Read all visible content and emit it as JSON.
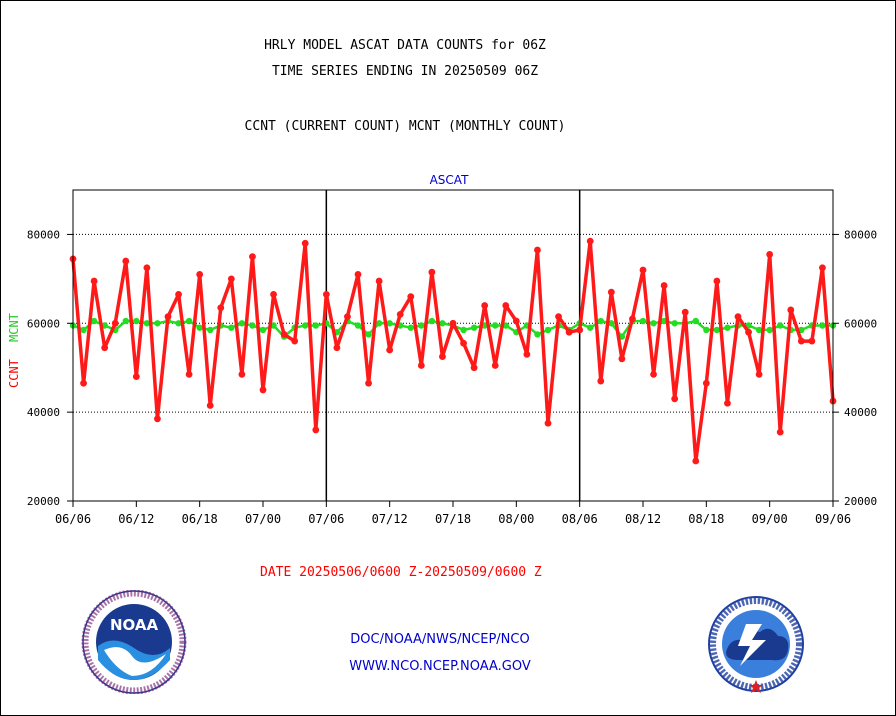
{
  "header": {
    "title_line1": "HRLY MODEL ASCAT DATA COUNTS for 06Z",
    "title_line2": "TIME SERIES ENDING IN 20250509 06Z",
    "title_line3": "CCNT (CURRENT COUNT) MCNT (MONTHLY COUNT)"
  },
  "colors": {
    "ccnt": "#ff1a1a",
    "mcnt": "#22dd22",
    "panel_title": "#0000cc",
    "grid": "#000000"
  },
  "footer": {
    "date_range": "DATE 20250506/0600 Z-20250509/0600 Z",
    "credit_line1": "DOC/NOAA/NWS/NCEP/NCO",
    "credit_line2": "WWW.NCO.NCEP.NOAA.GOV"
  },
  "logos": {
    "noaa": "noaa-logo",
    "nws": "national-weather-service-logo",
    "noaa_text": "NOAA"
  },
  "chart_data": {
    "type": "line",
    "title": "ASCAT",
    "ylabel_ccnt": "CCNT",
    "ylabel_mcnt": "MCNT",
    "ylim": [
      20000,
      90000
    ],
    "yticks": [
      20000,
      40000,
      60000,
      80000
    ],
    "ytick_labels": [
      "20000",
      "40000",
      "60000",
      "80000"
    ],
    "xlim": [
      0,
      72
    ],
    "xticks": [
      0,
      6,
      12,
      18,
      24,
      30,
      36,
      42,
      48,
      54,
      60,
      66,
      72
    ],
    "xtick_labels": [
      "06/06",
      "06/12",
      "06/18",
      "07/00",
      "07/06",
      "07/12",
      "07/18",
      "08/00",
      "08/06",
      "08/12",
      "08/18",
      "09/00",
      "09/06"
    ],
    "day_separators": [
      24,
      48
    ],
    "grid": "horizontal dotted at 40000, 60000, 80000",
    "series": [
      {
        "name": "CCNT",
        "values": [
          74500,
          46500,
          69500,
          54500,
          60000,
          74000,
          48000,
          72500,
          38500,
          61500,
          66500,
          48500,
          71000,
          41500,
          63500,
          70000,
          48500,
          75000,
          45000,
          66500,
          57500,
          56000,
          78000,
          36000,
          66500,
          54500,
          61500,
          71000,
          46500,
          69500,
          54000,
          62000,
          66000,
          50500,
          71500,
          52500,
          60000,
          55500,
          50000,
          64000,
          50500,
          64000,
          60500,
          53000,
          76500,
          37500,
          61500,
          58000,
          58500,
          78500,
          47000,
          67000,
          52000,
          61000,
          72000,
          48500,
          68500,
          43000,
          62500,
          29000,
          46500,
          69500,
          42000,
          61500,
          58000,
          48500,
          75500,
          35500,
          63000,
          56000,
          56000,
          72500,
          42500
        ]
      },
      {
        "name": "MCNT",
        "values": [
          59500,
          58500,
          60500,
          59500,
          58500,
          60500,
          60500,
          60000,
          60000,
          60500,
          60000,
          60500,
          59000,
          58500,
          59500,
          59000,
          60000,
          59500,
          58500,
          59500,
          57000,
          59000,
          59500,
          59500,
          60000,
          58000,
          60500,
          59500,
          57500,
          60000,
          60000,
          59500,
          59000,
          59500,
          60500,
          60000,
          59500,
          58500,
          59000,
          59500,
          59500,
          59500,
          58000,
          59500,
          57500,
          58500,
          59500,
          58500,
          60000,
          59000,
          60500,
          60000,
          57000,
          60500,
          60500,
          60000,
          60500,
          60000,
          60000,
          60500,
          58500,
          58500,
          59000,
          59500,
          59500,
          58500,
          58500,
          59500,
          58500,
          58500,
          59500,
          59500,
          59500
        ]
      }
    ]
  }
}
